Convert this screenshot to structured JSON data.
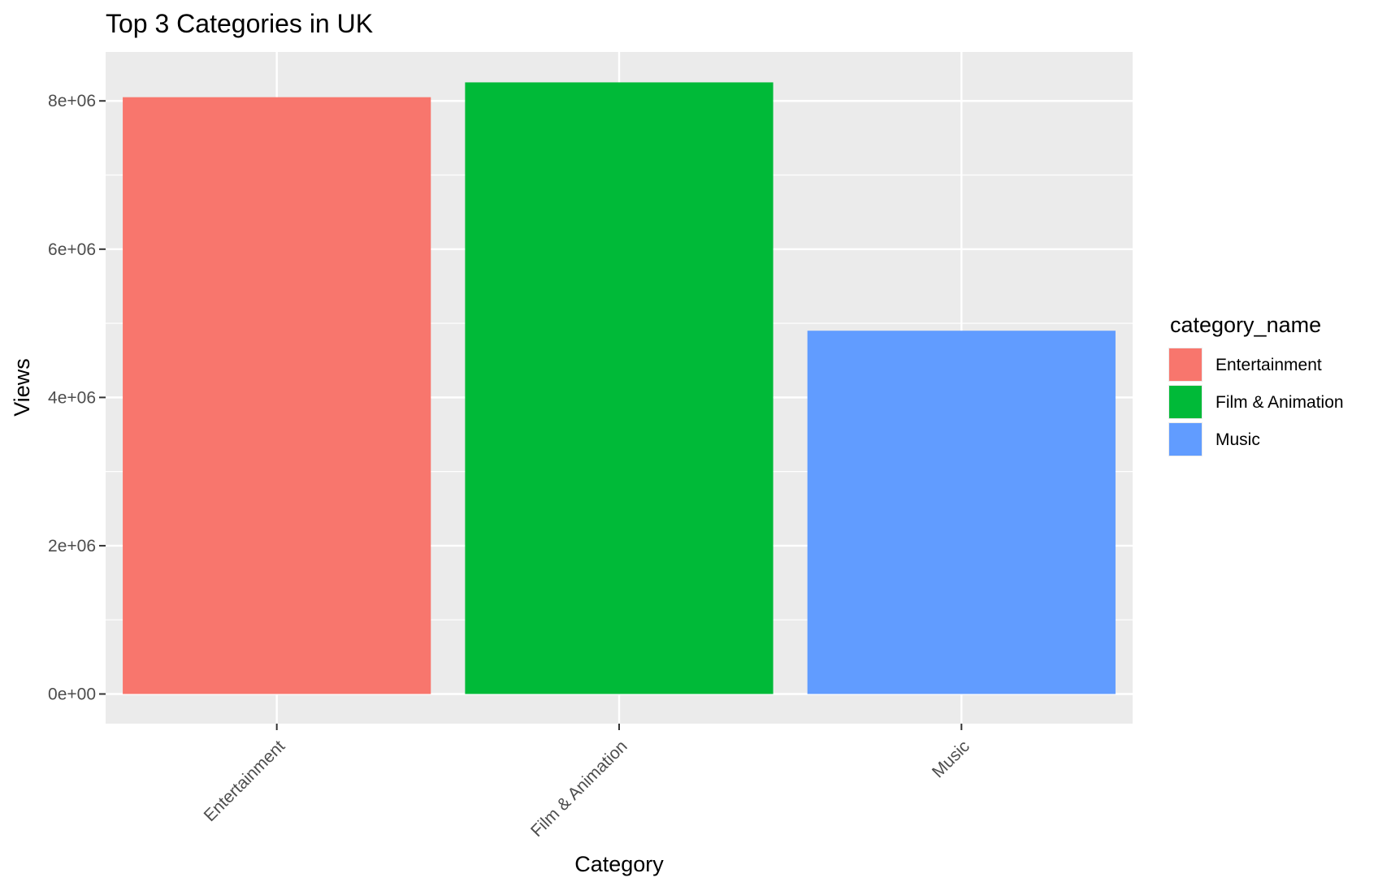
{
  "chart_data": {
    "type": "bar",
    "title": "Top 3 Categories in UK",
    "xlabel": "Category",
    "ylabel": "Views",
    "categories": [
      "Entertainment",
      "Film & Animation",
      "Music"
    ],
    "values": [
      8050000,
      8250000,
      4900000
    ],
    "colors": [
      "#F8766D",
      "#00BA38",
      "#619CFF"
    ],
    "ylim": [
      -400000,
      8660000
    ],
    "yticks": [
      0,
      2000000,
      4000000,
      6000000,
      8000000
    ],
    "ytick_labels": [
      "0e+00",
      "2e+06",
      "4e+06",
      "6e+06",
      "8e+06"
    ],
    "grid": true,
    "panel_background": "#EBEBEB",
    "legend": {
      "title": "category_name",
      "placement": "right",
      "entries": [
        "Entertainment",
        "Film & Animation",
        "Music"
      ]
    }
  }
}
